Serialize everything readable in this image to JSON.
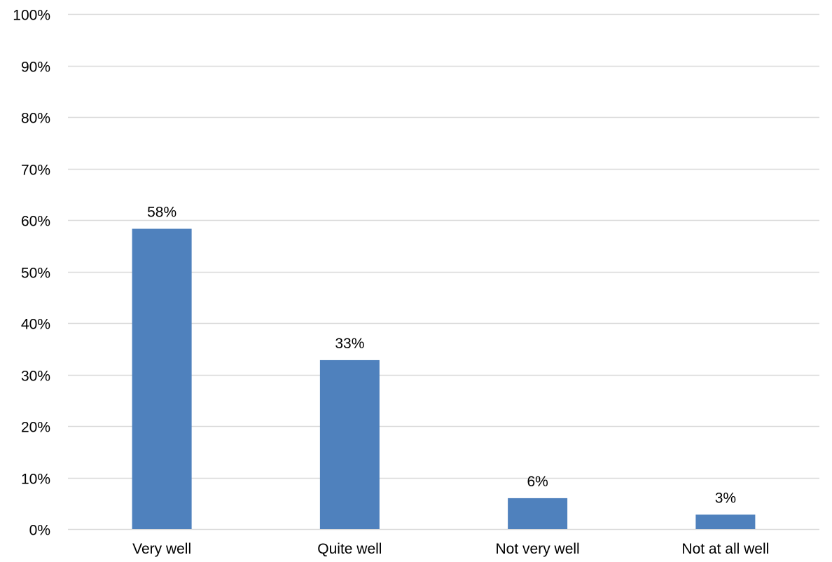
{
  "chart_data": {
    "type": "bar",
    "title": "",
    "xlabel": "",
    "ylabel": "",
    "categories": [
      "Very well",
      "Quite well",
      "Not very well",
      "Not at all well"
    ],
    "values": [
      58.3,
      32.8,
      6.0,
      2.8
    ],
    "data_labels": [
      "58%",
      "33%",
      "6%",
      "3%"
    ],
    "ylim": [
      0,
      100
    ],
    "y_ticks": [
      0,
      10,
      20,
      30,
      40,
      50,
      60,
      70,
      80,
      90,
      100
    ],
    "y_tick_labels": [
      "0%",
      "10%",
      "20%",
      "30%",
      "40%",
      "50%",
      "60%",
      "70%",
      "80%",
      "90%",
      "100%"
    ],
    "grid": true,
    "legend": "none",
    "bar_color": "#4F81BD",
    "grid_color": "#D9D9D9"
  }
}
